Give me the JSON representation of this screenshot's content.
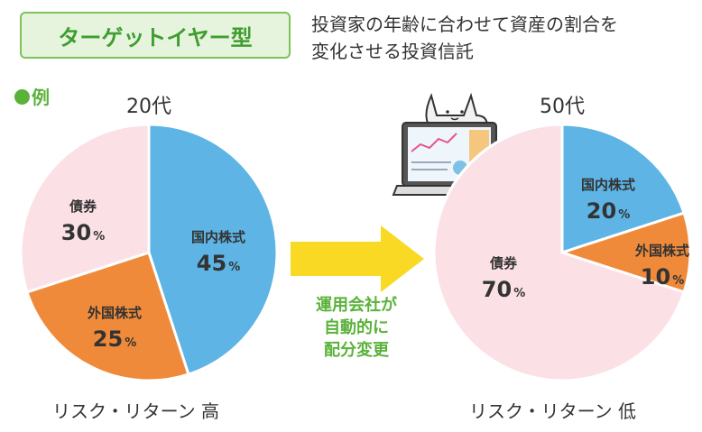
{
  "badge": "ターゲットイヤー型",
  "description": [
    "投資家の年齢に合わせて資産の割合を",
    "変化させる投資信託"
  ],
  "example_label": "例",
  "arrow_text": [
    "運用会社が",
    "自動的に",
    "配分変更"
  ],
  "colors": {
    "domestic": "#5db4e5",
    "foreign": "#ef8a3a",
    "bonds": "#fbe1e6",
    "accent_green": "#5ab23a"
  },
  "chart_data": [
    {
      "type": "pie",
      "title": "20代",
      "footer": "リスク・リターン 高",
      "unit": "%",
      "slices": [
        {
          "label": "国内株式",
          "value": 45,
          "color": "#5db4e5"
        },
        {
          "label": "外国株式",
          "value": 25,
          "color": "#ef8a3a"
        },
        {
          "label": "債券",
          "value": 30,
          "color": "#fbe1e6"
        }
      ]
    },
    {
      "type": "pie",
      "title": "50代",
      "footer": "リスク・リターン 低",
      "unit": "%",
      "slices": [
        {
          "label": "国内株式",
          "value": 20,
          "color": "#5db4e5"
        },
        {
          "label": "外国株式",
          "value": 10,
          "color": "#ef8a3a"
        },
        {
          "label": "債券",
          "value": 70,
          "color": "#fbe1e6"
        }
      ]
    }
  ]
}
